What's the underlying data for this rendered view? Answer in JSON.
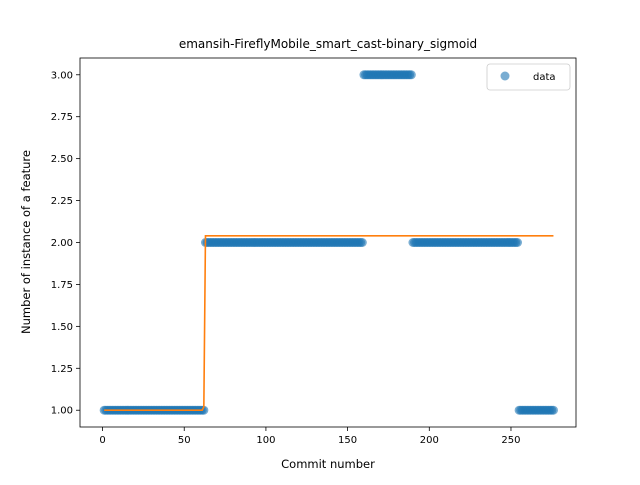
{
  "chart_data": {
    "type": "scatter",
    "title": "emansih-FireflyMobile_smart_cast-binary_sigmoid",
    "xlabel": "Commit number",
    "ylabel": "Number of instance of a feature",
    "xlim": [
      -13.8,
      289.8
    ],
    "ylim": [
      0.9,
      3.1
    ],
    "x_ticks": [
      0,
      50,
      100,
      150,
      200,
      250
    ],
    "x_tick_labels": [
      "0",
      "50",
      "100",
      "150",
      "200",
      "250"
    ],
    "y_ticks": [
      1.0,
      1.25,
      1.5,
      1.75,
      2.0,
      2.25,
      2.5,
      2.75,
      3.0
    ],
    "y_tick_labels": [
      "1.00",
      "1.25",
      "1.50",
      "1.75",
      "2.00",
      "2.25",
      "2.50",
      "2.75",
      "3.00"
    ],
    "grid": false,
    "legend": {
      "position": "top-right",
      "entries": [
        "data"
      ]
    },
    "series": [
      {
        "name": "data",
        "kind": "scatter",
        "color": "#1f77b4",
        "segments": [
          {
            "x_start": 1,
            "x_end": 62,
            "y": 1.0
          },
          {
            "x_start": 63,
            "x_end": 159,
            "y": 2.0
          },
          {
            "x_start": 160,
            "x_end": 189,
            "y": 3.0
          },
          {
            "x_start": 190,
            "x_end": 254,
            "y": 2.0
          },
          {
            "x_start": 255,
            "x_end": 276,
            "y": 1.0
          }
        ]
      },
      {
        "kind": "line",
        "color": "#ff7f0e",
        "points": [
          [
            1,
            1.0
          ],
          [
            61,
            1.0
          ],
          [
            62,
            1.02
          ],
          [
            63,
            2.04
          ],
          [
            276,
            2.04
          ]
        ]
      }
    ]
  }
}
